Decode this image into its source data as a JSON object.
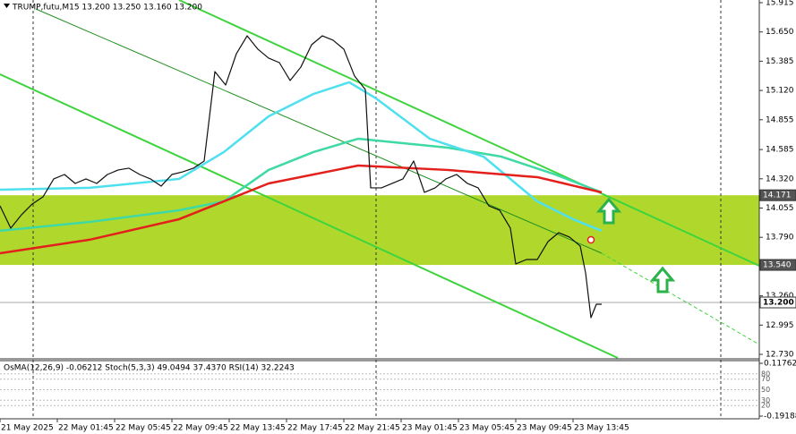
{
  "chart_data": {
    "type": "line",
    "title": "TRUMP,futu,M15 13.200 13.250 13.160 13.200",
    "indicator_title": "OsMA(12,26,9) -0.06212 Stoch(5,3,3) 49.0494 37.4370 RSI(14) 32.2243",
    "ylim": [
      12.73,
      15.915
    ],
    "yticks": [
      15.915,
      {
        "value": 15.65,
        "label": "15.650"
      },
      15.385,
      {
        "value": 15.12,
        "label": "15.120"
      },
      14.855,
      14.585,
      {
        "value": 14.32,
        "label": "14.320"
      },
      14.055,
      {
        "value": 13.79,
        "label": "13.790"
      },
      {
        "value": 13.26,
        "label": "13.260"
      },
      12.995,
      {
        "value": 12.73,
        "label": "12.730"
      }
    ],
    "zone": [
      {
        "value": 13.54,
        "label": "13.540"
      },
      14.171
    ],
    "current_price": {
      "value": 13.2,
      "label": "13.200"
    },
    "xlim": [
      0,
      212
    ],
    "xticks": [
      {
        "value": 0,
        "label": "21 May 2025"
      },
      {
        "value": 16,
        "label": "22 May 01:45"
      },
      {
        "value": 32,
        "label": "22 May 05:45"
      },
      {
        "value": 48,
        "label": "22 May 09:45"
      },
      {
        "value": 64,
        "label": "22 May 13:45"
      },
      {
        "value": 80,
        "label": "22 May 17:45"
      },
      {
        "value": 96,
        "label": "22 May 21:45"
      },
      {
        "value": 112,
        "label": "23 May 01:45"
      },
      {
        "value": 128,
        "label": "23 May 05:45"
      },
      {
        "value": 144,
        "label": "23 May 09:45"
      },
      {
        "value": 160,
        "label": "23 May 13:45"
      }
    ],
    "osc_ticks": [
      {
        "value": 0.11762,
        "label": "0.11762"
      },
      {
        "value": -0.19188,
        "label": "-0.19188"
      }
    ],
    "osc_levels": [
      80,
      70,
      50,
      30,
      20
    ],
    "series": [
      {
        "color": "#111111",
        "x": [
          0,
          3,
          6,
          9,
          12,
          15,
          18,
          21,
          24,
          27,
          30,
          33,
          36,
          39,
          42,
          45,
          48,
          51,
          54,
          57,
          58.5,
          60,
          63,
          66,
          69,
          72,
          75,
          78,
          81,
          84,
          87,
          90,
          93,
          96,
          99,
          102,
          103.5,
          106.5,
          109.5,
          112.5,
          115.5,
          118.5,
          121.5,
          124.5,
          127.5,
          130.5,
          133.5,
          136.5,
          139.5,
          142.5,
          144,
          147,
          150,
          153,
          156,
          159,
          162,
          163.5,
          165,
          166.5,
          168
        ],
        "values": [
          14.075,
          13.873,
          13.994,
          14.092,
          14.156,
          14.319,
          14.359,
          14.278,
          14.319,
          14.278,
          14.359,
          14.4,
          14.416,
          14.359,
          14.319,
          14.254,
          14.359,
          14.383,
          14.416,
          14.481,
          14.886,
          15.291,
          15.169,
          15.453,
          15.615,
          15.494,
          15.413,
          15.372,
          15.21,
          15.332,
          15.534,
          15.615,
          15.575,
          15.494,
          15.25,
          15.129,
          14.238,
          14.238,
          14.278,
          14.319,
          14.481,
          14.197,
          14.238,
          14.319,
          14.359,
          14.278,
          14.238,
          14.075,
          14.035,
          13.873,
          13.549,
          13.589,
          13.589,
          13.751,
          13.832,
          13.792,
          13.711,
          13.468,
          13.062,
          13.184,
          13.184
        ]
      },
      {
        "color": "#e3201b",
        "x": [
          0,
          25,
          50,
          75,
          100,
          125,
          150,
          168
        ],
        "values": [
          13.646,
          13.768,
          13.954,
          14.278,
          14.44,
          14.4,
          14.335,
          14.197
        ]
      },
      {
        "color": "#4fe0ef",
        "x": [
          0,
          25,
          50,
          62.5,
          75,
          87.5,
          97.5,
          105,
          120,
          135,
          150,
          160,
          168
        ],
        "values": [
          14.221,
          14.238,
          14.319,
          14.562,
          14.886,
          15.088,
          15.194,
          15.048,
          14.683,
          14.521,
          14.116,
          13.954,
          13.849
        ]
      },
      {
        "color": "#3fd9a5",
        "x": [
          0,
          25,
          50,
          62.5,
          75,
          87.5,
          100,
          112.5,
          125,
          140,
          155,
          168
        ],
        "values": [
          13.849,
          13.929,
          14.035,
          14.116,
          14.4,
          14.562,
          14.683,
          14.643,
          14.602,
          14.521,
          14.359,
          14.197
        ]
      }
    ]
  }
}
